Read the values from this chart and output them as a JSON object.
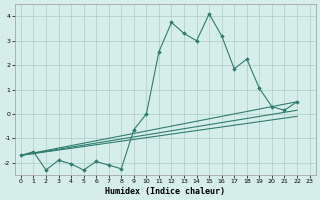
{
  "xlabel": "Humidex (Indice chaleur)",
  "bg_color": "#d6eeea",
  "line_color": "#2e7d6e",
  "grid_color": "#aeccc7",
  "xlim": [
    -0.5,
    23.5
  ],
  "ylim": [
    -2.5,
    4.5
  ],
  "xticks": [
    0,
    1,
    2,
    3,
    4,
    5,
    6,
    7,
    8,
    9,
    10,
    11,
    12,
    13,
    14,
    15,
    16,
    17,
    18,
    19,
    20,
    21,
    22,
    23
  ],
  "yticks": [
    -2,
    -1,
    0,
    1,
    2,
    3,
    4
  ],
  "main_series": [
    [
      0,
      -1.7
    ],
    [
      1,
      -1.55
    ],
    [
      2,
      -2.3
    ],
    [
      3,
      -1.9
    ],
    [
      4,
      -2.05
    ],
    [
      5,
      -2.3
    ],
    [
      6,
      -1.95
    ],
    [
      7,
      -2.1
    ],
    [
      8,
      -2.25
    ],
    [
      9,
      -0.65
    ],
    [
      10,
      0.0
    ],
    [
      11,
      2.55
    ],
    [
      12,
      3.75
    ],
    [
      13,
      3.3
    ],
    [
      14,
      3.0
    ],
    [
      15,
      4.1
    ],
    [
      16,
      3.2
    ],
    [
      17,
      1.85
    ],
    [
      18,
      2.25
    ],
    [
      19,
      1.05
    ],
    [
      20,
      0.3
    ],
    [
      21,
      0.15
    ],
    [
      22,
      0.5
    ]
  ],
  "straight_lines": [
    [
      [
        0,
        -1.7
      ],
      [
        22,
        0.5
      ]
    ],
    [
      [
        0,
        -1.7
      ],
      [
        22,
        0.15
      ]
    ],
    [
      [
        0,
        -1.7
      ],
      [
        22,
        -0.1
      ]
    ]
  ],
  "figsize": [
    3.2,
    2.0
  ],
  "dpi": 100
}
